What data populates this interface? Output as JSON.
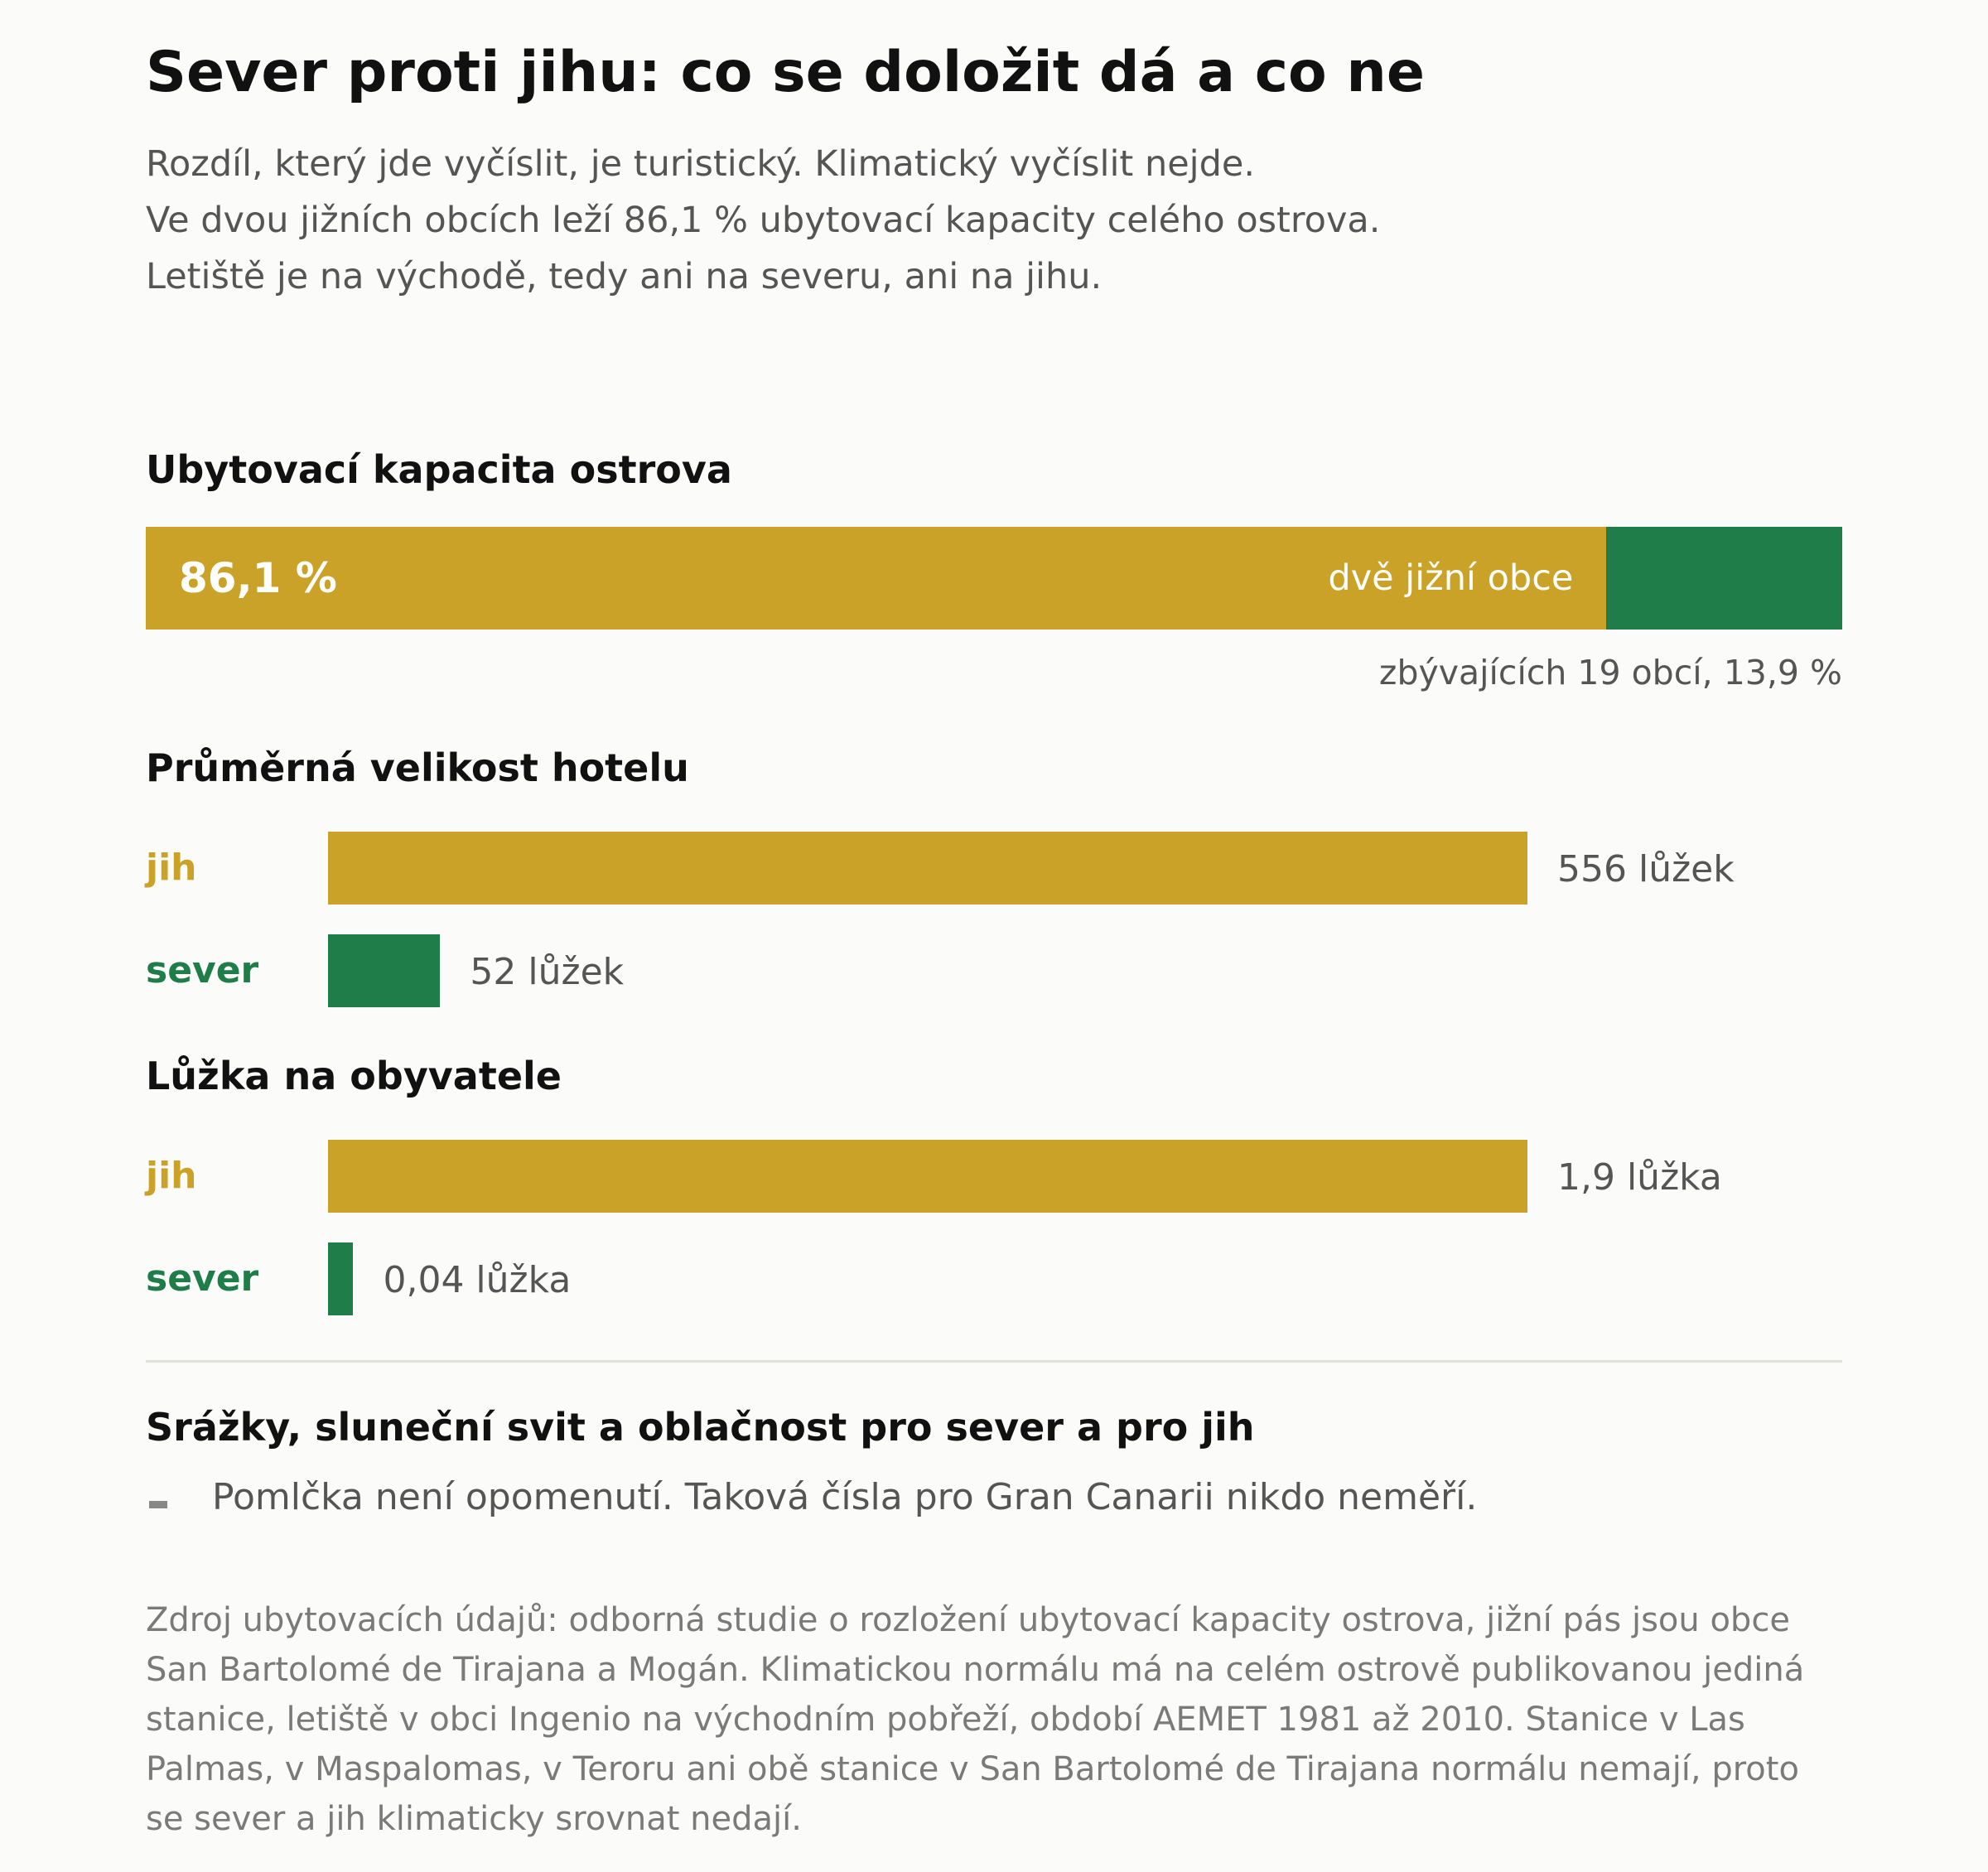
{
  "title": "Sever proti jihu: co se doložit dá a co ne",
  "subtitle": [
    "Rozdíl, který jde vyčíslit, je turistický. Klimatický vyčíslit nejde.",
    "Ve dvou jižních obcích leží 86,1 % ubytovací kapacity celého ostrova.",
    "Letiště je na východě, tedy ani na severu, ani na jihu."
  ],
  "colors": {
    "south": "#c9a227",
    "north": "#1e7d49",
    "muted": "#555555",
    "source": "#7a7a7a"
  },
  "chart_data": [
    {
      "type": "bar",
      "stacked": true,
      "title": "Ubytovací kapacita ostrova",
      "unit": "%",
      "series": [
        {
          "name": "dvě jižní obce",
          "value": 86.1,
          "value_label": "86,1 %"
        },
        {
          "name": "zbývajících 19 obcí",
          "value": 13.9
        }
      ],
      "note": "zbývajících 19 obcí, 13,9 %"
    },
    {
      "type": "bar",
      "title": "Průměrná velikost hotelu",
      "categories": [
        "jih",
        "sever"
      ],
      "values": [
        556,
        52
      ],
      "value_labels": [
        "556 lůžek",
        "52 lůžek"
      ]
    },
    {
      "type": "bar",
      "title": "Lůžka na obyvatele",
      "categories": [
        "jih",
        "sever"
      ],
      "values": [
        1.9,
        0.04
      ],
      "value_labels": [
        "1,9 lůžka",
        "0,04 lůžka"
      ]
    }
  ],
  "climate": {
    "title": "Srážky, sluneční svit a oblačnost pro sever a pro jih",
    "marker_icon": "dash-icon",
    "note": "Pomlčka není opomenutí. Taková čísla pro Gran Canarii nikdo neměří."
  },
  "source": [
    "Zdroj ubytovacích údajů: odborná studie o rozložení ubytovací kapacity ostrova, jižní pás jsou obce",
    "San Bartolomé de Tirajana a Mogán. Klimatickou normálu má na celém ostrově publikovanou jediná",
    "stanice, letiště v obci Ingenio na východním pobřeží, období AEMET 1981 až 2010. Stanice v Las",
    "Palmas, v Maspalomas, v Teroru ani obě stanice v San Bartolomé de Tirajana normálu nemají, proto",
    "se sever a jih klimaticky srovnat nedají."
  ]
}
